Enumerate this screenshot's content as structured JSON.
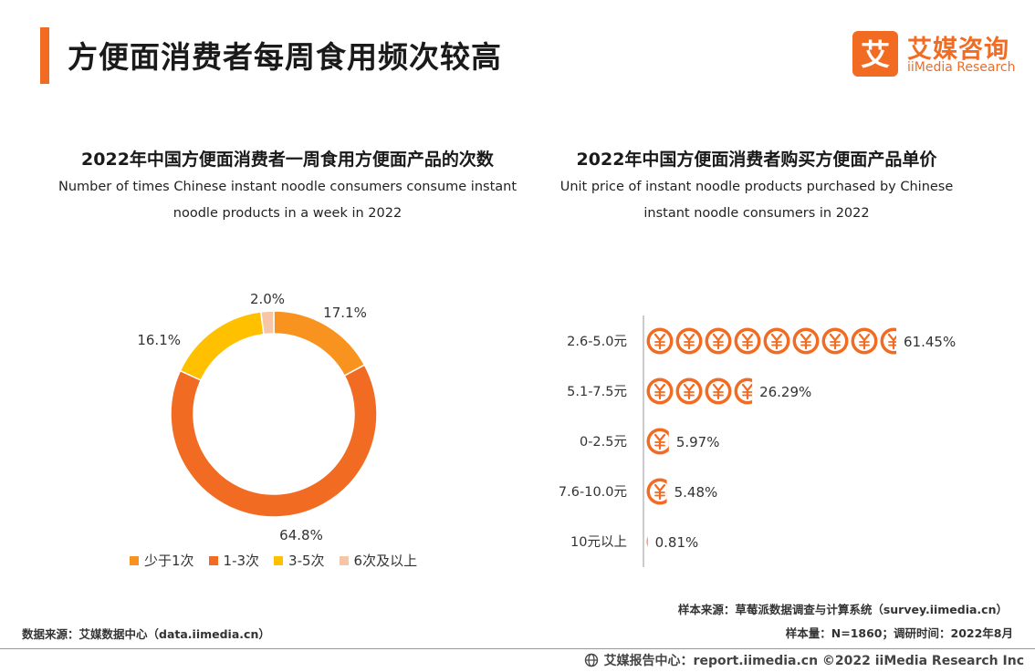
{
  "page": {
    "title": "方便面消费者每周食用频次较高"
  },
  "logo": {
    "cn": "艾媒咨询",
    "en": "iiMedia Research",
    "mark": "艾"
  },
  "colors": {
    "accent": "#f26b22",
    "yellow": "#ffc000",
    "peach": "#f7c6a6",
    "orange_light": "#f7931e"
  },
  "chart_data": [
    {
      "type": "pie",
      "title": "2022年中国方便面消费者一周食用方便面产品的次数",
      "subtitle": "Number of times Chinese instant noodle consumers consume instant noodle products in a week in 2022",
      "subtitle_lines": [
        "Number of times Chinese instant noodle consumers consume instant",
        "noodle products in a week in 2022"
      ],
      "categories": [
        "少于1次",
        "1-3次",
        "3-5次",
        "6次及以上"
      ],
      "values": [
        17.1,
        64.8,
        16.1,
        2.0
      ],
      "labels": [
        "17.1%",
        "64.8%",
        "16.1%",
        "2.0%"
      ],
      "colors": [
        "#f7931e",
        "#f26b22",
        "#ffc000",
        "#f7c6a6"
      ],
      "legend_position": "bottom"
    },
    {
      "type": "bar",
      "title": "2022年中国方便面消费者购买方便面产品单价",
      "subtitle_lines": [
        "Unit price of instant noodle products purchased by Chinese",
        "instant noodle consumers in 2022"
      ],
      "categories": [
        "2.6-5.0元",
        "5.1-7.5元",
        "0-2.5元",
        "7.6-10.0元",
        "10元以上"
      ],
      "values": [
        61.45,
        26.29,
        5.97,
        5.48,
        0.81
      ],
      "labels": [
        "61.45%",
        "26.29%",
        "5.97%",
        "5.48%",
        "0.81%"
      ],
      "orientation": "horizontal",
      "icon": "yuan-coin-icon"
    }
  ],
  "footer": {
    "data_source": "数据来源：艾媒数据中心（data.iimedia.cn）",
    "sample_source": "样本来源：草莓派数据调查与计算系统（survey.iimedia.cn）",
    "sample_info": "样本量：N=1860；调研时间：2022年8月",
    "copyright": "艾媒报告中心：report.iimedia.cn   ©2022  iiMedia Research  Inc"
  }
}
